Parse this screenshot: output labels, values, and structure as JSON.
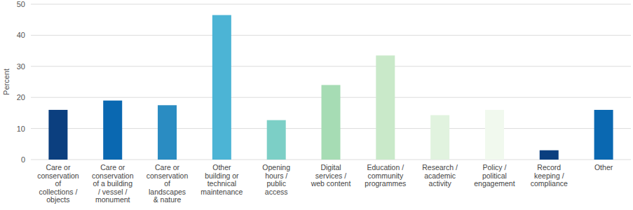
{
  "chart_data": {
    "type": "bar",
    "y_label": "Percent",
    "categories": [
      "Care or conservation of collections / objects",
      "Care or conservation of a building / vessel / monument",
      "Care or conservation of landscapes & nature",
      "Other building or technical maintenance",
      "Opening hours / public access",
      "Digital services / web content",
      "Education / community programmes",
      "Research / academic activity",
      "Policy / political engagement",
      "Record keeping / compliance",
      "Other"
    ],
    "values": [
      16,
      19,
      17.5,
      46.5,
      12.7,
      24,
      33.5,
      14.3,
      16,
      3,
      16
    ],
    "colors": [
      "#0b3f7f",
      "#0a68b1",
      "#2a8cc2",
      "#4cb4d5",
      "#7ccfc6",
      "#a6dcb4",
      "#c9e9c9",
      "#e1f3df",
      "#f1f9ee",
      "#0b3f7f",
      "#0a68b1"
    ],
    "ylim": [
      0,
      50
    ],
    "yticks": [
      0,
      10,
      20,
      30,
      40,
      50
    ],
    "grid": true
  }
}
